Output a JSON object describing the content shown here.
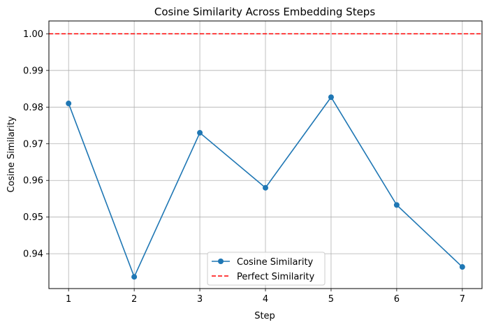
{
  "chart_data": {
    "type": "line",
    "title": "Cosine Similarity Across Embedding Steps",
    "xlabel": "Step",
    "ylabel": "Cosine Similarity",
    "x": [
      1,
      2,
      3,
      4,
      5,
      6,
      7
    ],
    "series": [
      {
        "name": "Cosine Similarity",
        "values": [
          0.981,
          0.9337,
          0.973,
          0.958,
          0.9827,
          0.9533,
          0.9364
        ],
        "color": "#1f77b4",
        "style": "solid",
        "marker": "circle"
      }
    ],
    "reference_lines": [
      {
        "name": "Perfect Similarity",
        "y": 1.0,
        "color": "#ff0000",
        "style": "dashed"
      }
    ],
    "xlim": [
      0.7,
      7.3
    ],
    "ylim": [
      0.9305,
      1.0035
    ],
    "xticks": [
      1,
      2,
      3,
      4,
      5,
      6,
      7
    ],
    "xtick_labels": [
      "1",
      "2",
      "3",
      "4",
      "5",
      "6",
      "7"
    ],
    "yticks": [
      0.94,
      0.95,
      0.96,
      0.97,
      0.98,
      0.99,
      1.0
    ],
    "ytick_labels": [
      "0.94",
      "0.95",
      "0.96",
      "0.97",
      "0.98",
      "0.99",
      "1.00"
    ],
    "grid": true,
    "legend": {
      "position": "lower center",
      "entries": [
        "Cosine Similarity",
        "Perfect Similarity"
      ]
    }
  }
}
